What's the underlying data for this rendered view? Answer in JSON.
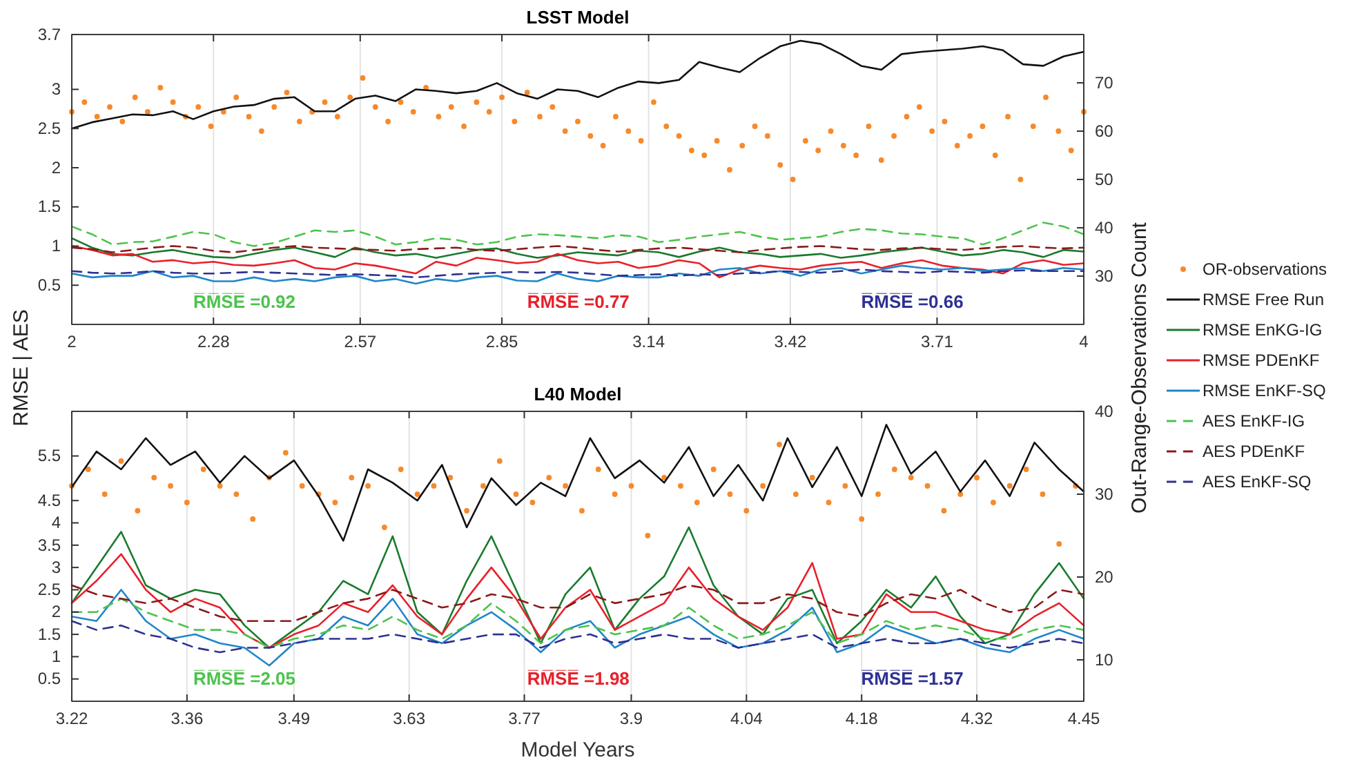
{
  "chart_data": [
    {
      "type": "line",
      "title": "LSST Model",
      "ylabel": "RMSE | AES",
      "y2label": "Out-Range-Observations Count",
      "legend": "right",
      "grid": "x",
      "x": [
        2,
        2.04,
        2.08,
        2.12,
        2.16,
        2.2,
        2.24,
        2.28,
        2.32,
        2.36,
        2.4,
        2.44,
        2.48,
        2.52,
        2.56,
        2.6,
        2.64,
        2.68,
        2.72,
        2.76,
        2.8,
        2.84,
        2.88,
        2.92,
        2.96,
        3,
        3.04,
        3.08,
        3.12,
        3.16,
        3.2,
        3.24,
        3.28,
        3.32,
        3.36,
        3.4,
        3.44,
        3.48,
        3.52,
        3.56,
        3.6,
        3.64,
        3.68,
        3.72,
        3.76,
        3.8,
        3.84,
        3.88,
        3.92,
        3.96,
        4
      ],
      "xlim": [
        2,
        4
      ],
      "xticks": [
        2,
        2.28,
        2.57,
        2.85,
        3.14,
        3.42,
        3.71,
        4
      ],
      "ylim": [
        0,
        3.7
      ],
      "yticks": [
        0.5,
        1,
        1.5,
        2,
        2.5,
        3,
        3.7
      ],
      "y2lim": [
        20,
        80
      ],
      "y2ticks": [
        30,
        40,
        50,
        60,
        70
      ],
      "series": [
        {
          "name": "OR-observations",
          "type": "scatter",
          "marker": "circle",
          "axis": "y2",
          "color": "#f7892b",
          "x": [
            2,
            2.025,
            2.05,
            2.075,
            2.1,
            2.125,
            2.15,
            2.175,
            2.2,
            2.225,
            2.25,
            2.275,
            2.3,
            2.325,
            2.35,
            2.375,
            2.4,
            2.425,
            2.45,
            2.475,
            2.5,
            2.525,
            2.55,
            2.575,
            2.6,
            2.625,
            2.65,
            2.675,
            2.7,
            2.725,
            2.75,
            2.775,
            2.8,
            2.825,
            2.85,
            2.875,
            2.9,
            2.925,
            2.95,
            2.975,
            3,
            3.025,
            3.05,
            3.075,
            3.1,
            3.125,
            3.15,
            3.175,
            3.2,
            3.225,
            3.25,
            3.275,
            3.3,
            3.325,
            3.35,
            3.375,
            3.4,
            3.425,
            3.45,
            3.475,
            3.5,
            3.525,
            3.55,
            3.575,
            3.6,
            3.625,
            3.65,
            3.675,
            3.7,
            3.725,
            3.75,
            3.775,
            3.8,
            3.825,
            3.85,
            3.875,
            3.9,
            3.925,
            3.95,
            3.975,
            4
          ],
          "values": [
            64,
            66,
            63,
            65,
            62,
            67,
            64,
            69,
            66,
            63,
            65,
            61,
            64,
            67,
            63,
            60,
            65,
            68,
            62,
            64,
            66,
            63,
            67,
            71,
            65,
            62,
            66,
            64,
            69,
            63,
            65,
            61,
            66,
            64,
            67,
            62,
            68,
            63,
            65,
            60,
            62,
            59,
            57,
            63,
            60,
            58,
            66,
            61,
            59,
            56,
            55,
            58,
            52,
            57,
            61,
            59,
            53,
            50,
            58,
            56,
            60,
            57,
            55,
            61,
            54,
            59,
            63,
            65,
            60,
            62,
            57,
            59,
            61,
            55,
            63,
            50,
            61,
            67,
            60,
            56,
            64
          ]
        },
        {
          "name": "RMSE Free Run",
          "color": "#111111",
          "values": [
            2.5,
            2.58,
            2.63,
            2.68,
            2.67,
            2.72,
            2.62,
            2.72,
            2.78,
            2.8,
            2.88,
            2.9,
            2.72,
            2.72,
            2.88,
            2.92,
            2.85,
            3,
            2.98,
            2.95,
            2.98,
            3.08,
            2.95,
            2.88,
            3,
            2.98,
            2.9,
            3.02,
            3.1,
            3.08,
            3.12,
            3.35,
            3.28,
            3.22,
            3.4,
            3.55,
            3.62,
            3.58,
            3.45,
            3.3,
            3.25,
            3.45,
            3.48,
            3.5,
            3.52,
            3.55,
            3.5,
            3.32,
            3.3,
            3.42,
            3.48
          ]
        },
        {
          "name": "RMSE EnKG-IG",
          "color": "#1a7a2e",
          "values": [
            1.1,
            0.98,
            0.9,
            0.88,
            0.92,
            0.95,
            0.9,
            0.86,
            0.85,
            0.9,
            0.95,
            0.98,
            0.92,
            0.86,
            0.98,
            0.92,
            0.88,
            0.9,
            0.85,
            0.9,
            0.95,
            0.97,
            0.9,
            0.85,
            0.88,
            0.92,
            0.9,
            0.88,
            0.94,
            0.92,
            0.86,
            0.93,
            0.98,
            0.92,
            0.9,
            0.86,
            0.88,
            0.9,
            0.85,
            0.88,
            0.92,
            0.95,
            0.98,
            0.93,
            0.88,
            0.9,
            0.95,
            0.92,
            0.86,
            0.95,
            0.93
          ]
        },
        {
          "name": "RMSE PDEnKF",
          "color": "#e8202a",
          "values": [
            1,
            0.95,
            0.88,
            0.9,
            0.8,
            0.82,
            0.78,
            0.8,
            0.76,
            0.75,
            0.78,
            0.82,
            0.72,
            0.7,
            0.78,
            0.75,
            0.7,
            0.65,
            0.8,
            0.75,
            0.85,
            0.82,
            0.78,
            0.8,
            0.9,
            0.82,
            0.78,
            0.8,
            0.72,
            0.75,
            0.82,
            0.78,
            0.6,
            0.7,
            0.75,
            0.72,
            0.7,
            0.75,
            0.78,
            0.8,
            0.72,
            0.78,
            0.82,
            0.75,
            0.72,
            0.7,
            0.65,
            0.78,
            0.82,
            0.76,
            0.78
          ]
        },
        {
          "name": "RMSE EnKF-SQ",
          "color": "#1f86c8",
          "values": [
            0.65,
            0.6,
            0.62,
            0.62,
            0.68,
            0.6,
            0.62,
            0.55,
            0.55,
            0.6,
            0.55,
            0.58,
            0.55,
            0.6,
            0.62,
            0.55,
            0.58,
            0.52,
            0.58,
            0.55,
            0.6,
            0.62,
            0.56,
            0.55,
            0.65,
            0.58,
            0.55,
            0.62,
            0.6,
            0.6,
            0.65,
            0.62,
            0.7,
            0.72,
            0.65,
            0.68,
            0.62,
            0.7,
            0.72,
            0.65,
            0.7,
            0.75,
            0.72,
            0.7,
            0.72,
            0.68,
            0.7,
            0.72,
            0.68,
            0.72,
            0.7
          ]
        },
        {
          "name": "AES EnKF-IG",
          "color": "#4cc34c",
          "line_style": "dashed",
          "values": [
            1.25,
            1.15,
            1.02,
            1.05,
            1.06,
            1.12,
            1.18,
            1.15,
            1.05,
            1,
            1.04,
            1.12,
            1.2,
            1.18,
            1.2,
            1.12,
            1.02,
            1.05,
            1.1,
            1.08,
            1.02,
            1.05,
            1.12,
            1.15,
            1.14,
            1.12,
            1.1,
            1.14,
            1.12,
            1.05,
            1.08,
            1.12,
            1.15,
            1.18,
            1.12,
            1.08,
            1.1,
            1.12,
            1.18,
            1.22,
            1.2,
            1.16,
            1.15,
            1.12,
            1.1,
            1.02,
            1.1,
            1.2,
            1.3,
            1.25,
            1.15
          ]
        },
        {
          "name": "AES PDEnKF",
          "color": "#8b1a1a",
          "line_style": "dashed",
          "values": [
            0.98,
            0.96,
            0.92,
            0.95,
            0.98,
            1,
            0.98,
            0.94,
            0.92,
            0.95,
            0.98,
            1,
            0.98,
            0.97,
            0.96,
            0.95,
            0.94,
            0.96,
            0.97,
            0.98,
            0.95,
            0.94,
            0.96,
            0.98,
            1,
            0.98,
            0.95,
            0.93,
            0.95,
            0.97,
            0.98,
            0.96,
            0.94,
            0.92,
            0.95,
            0.97,
            0.99,
            1,
            0.98,
            0.96,
            0.95,
            0.97,
            0.98,
            0.96,
            0.95,
            0.97,
            0.99,
            1,
            0.98,
            0.97,
            0.98
          ]
        },
        {
          "name": "AES EnKF-SQ",
          "color": "#2e3192",
          "line_style": "dashed",
          "values": [
            0.68,
            0.66,
            0.65,
            0.66,
            0.68,
            0.66,
            0.65,
            0.65,
            0.66,
            0.67,
            0.66,
            0.65,
            0.64,
            0.63,
            0.64,
            0.63,
            0.62,
            0.6,
            0.62,
            0.64,
            0.65,
            0.66,
            0.67,
            0.66,
            0.67,
            0.66,
            0.64,
            0.62,
            0.63,
            0.64,
            0.62,
            0.64,
            0.63,
            0.65,
            0.66,
            0.68,
            0.67,
            0.66,
            0.68,
            0.7,
            0.68,
            0.67,
            0.66,
            0.68,
            0.67,
            0.66,
            0.68,
            0.69,
            0.68,
            0.68,
            0.68
          ]
        }
      ],
      "annotations": [
        "R̅M̅S̅E̅ =0.92",
        "R̅M̅S̅E̅ =0.77",
        "R̅M̅S̅E̅ =0.66"
      ]
    },
    {
      "type": "line",
      "title": "L40 Model",
      "xlabel": "Model Years",
      "grid": "x",
      "x": [
        3.22,
        3.25,
        3.28,
        3.31,
        3.34,
        3.37,
        3.4,
        3.43,
        3.46,
        3.49,
        3.52,
        3.55,
        3.58,
        3.61,
        3.64,
        3.67,
        3.7,
        3.73,
        3.76,
        3.79,
        3.82,
        3.85,
        3.88,
        3.91,
        3.94,
        3.97,
        4,
        4.03,
        4.06,
        4.09,
        4.12,
        4.15,
        4.18,
        4.21,
        4.24,
        4.27,
        4.3,
        4.33,
        4.36,
        4.39,
        4.42,
        4.45
      ],
      "xlim": [
        3.22,
        4.45
      ],
      "xticks": [
        3.22,
        3.36,
        3.49,
        3.63,
        3.77,
        3.9,
        4.04,
        4.18,
        4.32,
        4.45
      ],
      "ylim": [
        0,
        6.5
      ],
      "yticks": [
        0.5,
        1,
        1.5,
        2,
        2.5,
        3,
        3.5,
        4,
        4.5,
        5.5
      ],
      "y2lim": [
        5,
        40
      ],
      "y2ticks": [
        10,
        20,
        30,
        40
      ],
      "series": [
        {
          "type": "scatter",
          "marker": "circle",
          "axis": "y2",
          "color": "#f7892b",
          "x": [
            3.22,
            3.24,
            3.26,
            3.28,
            3.3,
            3.32,
            3.34,
            3.36,
            3.38,
            3.4,
            3.42,
            3.44,
            3.46,
            3.48,
            3.5,
            3.52,
            3.54,
            3.56,
            3.58,
            3.6,
            3.62,
            3.64,
            3.66,
            3.68,
            3.7,
            3.72,
            3.74,
            3.76,
            3.78,
            3.8,
            3.82,
            3.84,
            3.86,
            3.88,
            3.9,
            3.92,
            3.94,
            3.96,
            3.98,
            4,
            4.02,
            4.04,
            4.06,
            4.08,
            4.1,
            4.12,
            4.14,
            4.16,
            4.18,
            4.2,
            4.22,
            4.24,
            4.26,
            4.28,
            4.3,
            4.32,
            4.34,
            4.36,
            4.38,
            4.4,
            4.42,
            4.44
          ],
          "values": [
            31,
            33,
            30,
            34,
            28,
            32,
            31,
            29,
            33,
            31,
            30,
            27,
            32,
            35,
            31,
            30,
            29,
            32,
            31,
            26,
            33,
            30,
            31,
            32,
            28,
            31,
            34,
            30,
            29,
            32,
            31,
            28,
            33,
            30,
            31,
            25,
            32,
            31,
            29,
            33,
            30,
            28,
            31,
            36,
            30,
            32,
            29,
            31,
            27,
            30,
            33,
            32,
            31,
            28,
            30,
            32,
            29,
            31,
            33,
            30,
            24,
            31
          ]
        },
        {
          "color": "#111111",
          "values": [
            4.8,
            5.6,
            5.2,
            5.9,
            5.3,
            5.6,
            4.9,
            5.5,
            5,
            5.4,
            4.6,
            3.6,
            5.2,
            4.9,
            4.5,
            5.3,
            3.9,
            5,
            4.4,
            4.9,
            4.6,
            5.9,
            5,
            5.4,
            4.9,
            5.7,
            4.6,
            5.3,
            4.5,
            5.9,
            4.8,
            5.7,
            4.6,
            6.2,
            5.1,
            5.6,
            4.7,
            5.4,
            4.6,
            5.8,
            5.2,
            4.7
          ]
        },
        {
          "color": "#1a7a2e",
          "values": [
            2.2,
            3,
            3.8,
            2.6,
            2.3,
            2.5,
            2.4,
            1.7,
            1.2,
            1.6,
            2,
            2.7,
            2.4,
            3.7,
            2,
            1.5,
            2.7,
            3.7,
            2.5,
            1.3,
            2.4,
            3,
            1.6,
            2.3,
            2.8,
            3.9,
            2.6,
            1.9,
            1.5,
            2.3,
            2.5,
            1.3,
            1.8,
            2.5,
            2.1,
            2.8,
            1.9,
            1.3,
            1.5,
            2.4,
            3.1,
            2.3
          ]
        },
        {
          "color": "#e8202a",
          "values": [
            2.2,
            2.7,
            3.3,
            2.5,
            2,
            2.3,
            2.1,
            1.5,
            1.2,
            1.5,
            1.7,
            2.2,
            2,
            2.6,
            1.9,
            1.5,
            2.3,
            3,
            2.3,
            1.4,
            2.1,
            2.5,
            1.6,
            1.9,
            2.2,
            3,
            2.3,
            1.9,
            1.6,
            2.1,
            3.1,
            1.4,
            1.5,
            2.4,
            2,
            2,
            1.8,
            1.6,
            1.5,
            1.9,
            2.2,
            1.7
          ]
        },
        {
          "color": "#1f86c8",
          "values": [
            1.9,
            1.8,
            2.5,
            1.8,
            1.4,
            1.5,
            1.3,
            1.2,
            0.8,
            1.3,
            1.4,
            1.9,
            1.7,
            2.3,
            1.5,
            1.3,
            1.7,
            2,
            1.6,
            1.1,
            1.6,
            1.8,
            1.2,
            1.5,
            1.7,
            1.9,
            1.5,
            1.2,
            1.3,
            1.6,
            2.1,
            1.1,
            1.3,
            1.7,
            1.5,
            1.3,
            1.4,
            1.2,
            1.1,
            1.4,
            1.6,
            1.4
          ]
        },
        {
          "color": "#4cc34c",
          "line_style": "dashed",
          "values": [
            2,
            2,
            2.3,
            2,
            1.8,
            1.6,
            1.6,
            1.5,
            1.2,
            1.4,
            1.5,
            1.7,
            1.6,
            1.9,
            1.6,
            1.4,
            1.7,
            2.2,
            1.8,
            1.3,
            1.6,
            1.7,
            1.5,
            1.6,
            1.7,
            2.1,
            1.7,
            1.4,
            1.5,
            1.7,
            2,
            1.3,
            1.5,
            1.8,
            1.6,
            1.7,
            1.6,
            1.4,
            1.4,
            1.6,
            1.7,
            1.6
          ]
        },
        {
          "color": "#8b1a1a",
          "line_style": "dashed",
          "values": [
            2.6,
            2.4,
            2.3,
            2.2,
            2.3,
            2.1,
            1.9,
            1.8,
            1.8,
            1.8,
            2,
            2.2,
            2.3,
            2.5,
            2.3,
            2.1,
            2.2,
            2.4,
            2.3,
            2.1,
            2.1,
            2.4,
            2.2,
            2.3,
            2.4,
            2.6,
            2.5,
            2.2,
            2.2,
            2.4,
            2.3,
            2,
            1.9,
            2.2,
            2.4,
            2.3,
            2.5,
            2.2,
            2,
            2.1,
            2.5,
            2.4
          ]
        },
        {
          "color": "#2e3192",
          "line_style": "dashed",
          "values": [
            1.8,
            1.6,
            1.7,
            1.5,
            1.4,
            1.2,
            1.1,
            1.2,
            1.2,
            1.3,
            1.4,
            1.4,
            1.4,
            1.5,
            1.4,
            1.3,
            1.4,
            1.5,
            1.5,
            1.2,
            1.4,
            1.5,
            1.3,
            1.4,
            1.5,
            1.4,
            1.4,
            1.2,
            1.3,
            1.4,
            1.5,
            1.2,
            1.3,
            1.4,
            1.3,
            1.3,
            1.4,
            1.3,
            1.2,
            1.3,
            1.4,
            1.3
          ]
        }
      ],
      "annotations": [
        "R̅M̅S̅E̅ =2.05",
        "R̅M̅S̅E̅ =1.98",
        "R̅M̅S̅E̅ =1.57"
      ]
    }
  ]
}
